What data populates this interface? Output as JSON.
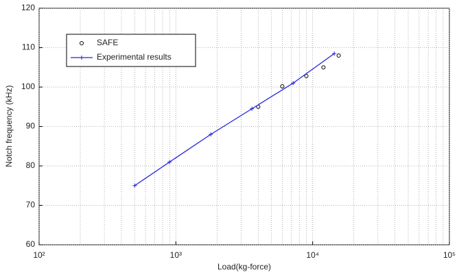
{
  "chart_data": {
    "type": "line",
    "xlabel": "Load(kg-force)",
    "ylabel": "Notch frequency (kHz)",
    "xscale": "log",
    "grid": true,
    "legend": "upper left",
    "xlim": [
      100,
      100000
    ],
    "ylim": [
      60,
      120
    ],
    "xticks": [
      {
        "value": 100,
        "label": "10²"
      },
      {
        "value": 1000,
        "label": "10³"
      },
      {
        "value": 10000,
        "label": "10⁴"
      },
      {
        "value": 100000,
        "label": "10⁵"
      }
    ],
    "yticks": [
      60,
      70,
      80,
      90,
      100,
      110,
      120
    ],
    "series": [
      {
        "name": "SAFE",
        "color": "#000000",
        "marker": "circle",
        "line": false,
        "x": [
          4000,
          6000,
          9000,
          12000,
          15500
        ],
        "values": [
          95,
          100.2,
          102.8,
          105,
          108
        ]
      },
      {
        "name": "Experimental results",
        "color": "#2222dd",
        "marker": "plus",
        "line": true,
        "x": [
          500,
          900,
          1800,
          3600,
          7200,
          14400
        ],
        "values": [
          75,
          81,
          88,
          94.5,
          101,
          108.5
        ]
      }
    ]
  }
}
